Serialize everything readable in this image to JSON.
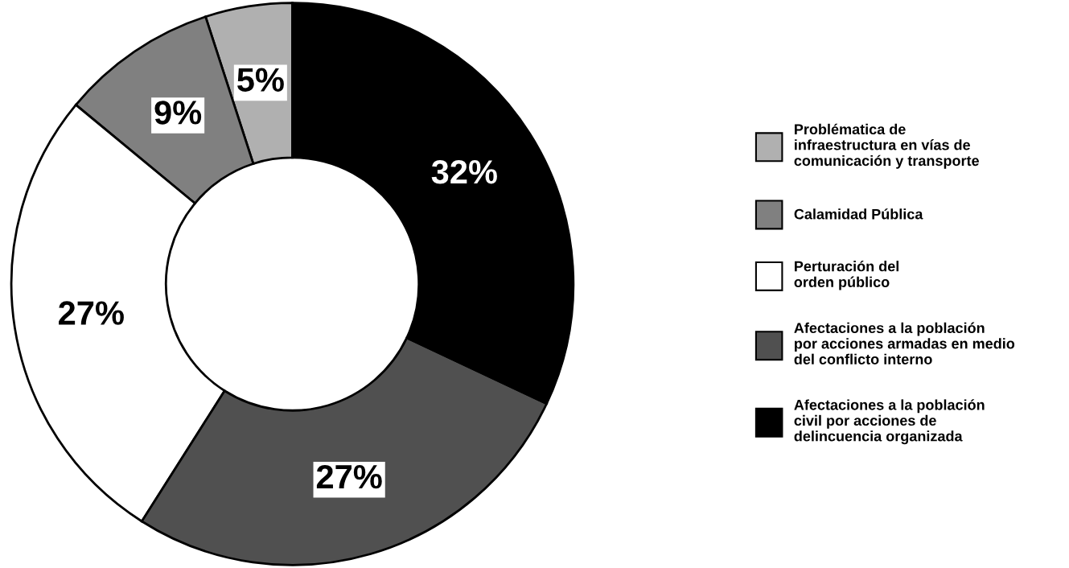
{
  "chart_data": {
    "type": "donut",
    "categories": [
      "Problématica de\ninfraestructura en vías de\ncomunicación y transporte",
      "Calamidad Pública",
      "Perturación del\norden público",
      "Afectaciones a la población\npor acciones armadas en medio\ndel conflicto interno",
      "Afectaciones a la población\ncivil por acciones de\ndelincuencia organizada"
    ],
    "values": [
      5,
      9,
      27,
      27,
      32
    ],
    "colors": [
      "#b0b0b0",
      "#808080",
      "#ffffff",
      "#505050",
      "#000000"
    ],
    "value_labels": [
      "5%",
      "9%",
      "27%",
      "27%",
      "32%"
    ],
    "legend": "right"
  }
}
